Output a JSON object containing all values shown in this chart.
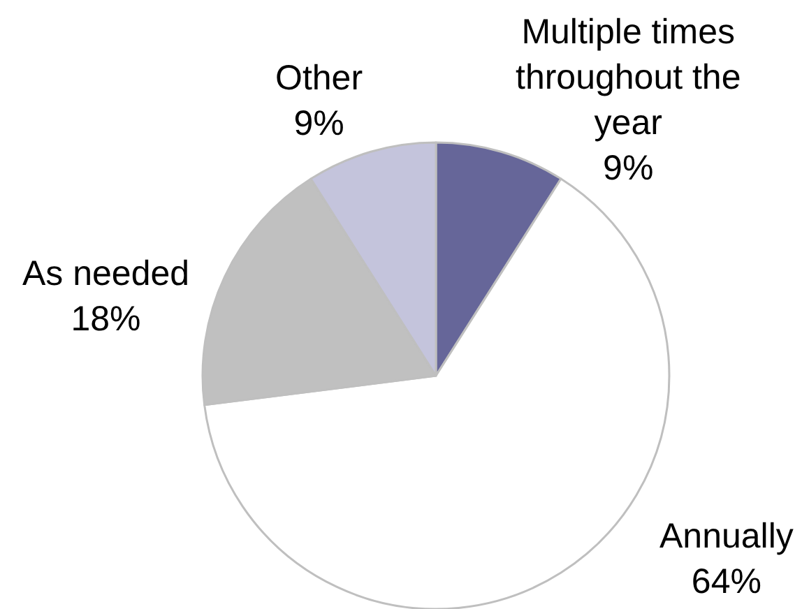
{
  "chart_data": {
    "type": "pie",
    "categories": [
      "Multiple times throughout the year",
      "Annually",
      "As needed",
      "Other"
    ],
    "values": [
      9,
      64,
      18,
      9
    ],
    "value_labels": [
      "9%",
      "64%",
      "18%",
      "9%"
    ],
    "colors": [
      "#666699",
      "#ffffff",
      "#c0c0c0",
      "#c4c4dc"
    ]
  }
}
